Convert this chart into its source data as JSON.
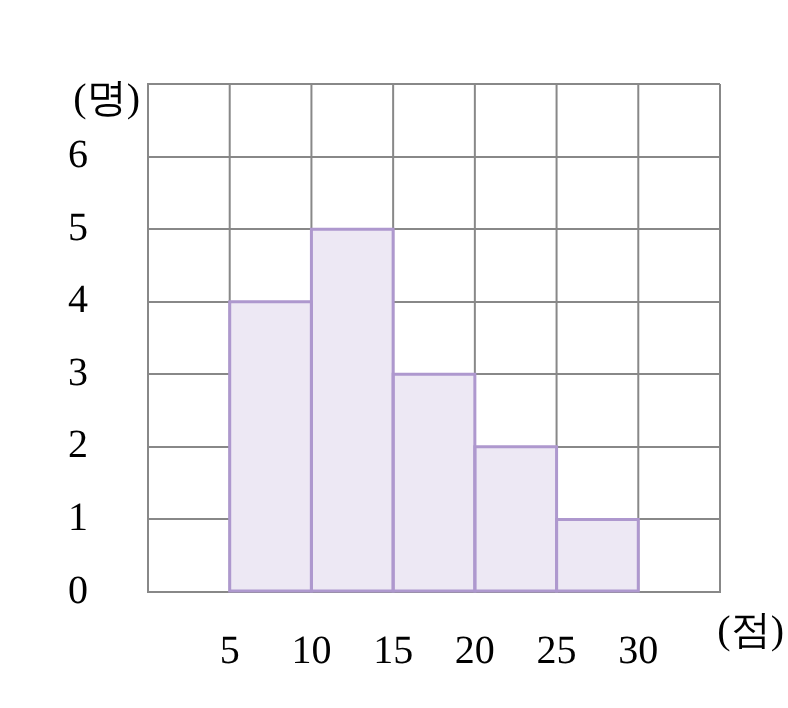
{
  "chart_data": {
    "type": "histogram",
    "xlabel": "(점)",
    "ylabel": "(명)",
    "bins": [
      5,
      10,
      15,
      20,
      25,
      30
    ],
    "values": [
      4,
      5,
      3,
      2,
      1
    ],
    "color": "#ede8f4",
    "xlim": [
      0,
      35
    ],
    "ylim": [
      0,
      7
    ],
    "xticks": [
      {
        "value": 0,
        "label": null
      },
      5,
      10,
      15,
      20,
      25,
      30,
      {
        "value": 35,
        "label": null
      }
    ],
    "yticks": [
      0,
      1,
      2,
      3,
      4,
      5,
      6,
      {
        "value": 7,
        "label": null
      }
    ],
    "grid": true,
    "legend": false
  }
}
